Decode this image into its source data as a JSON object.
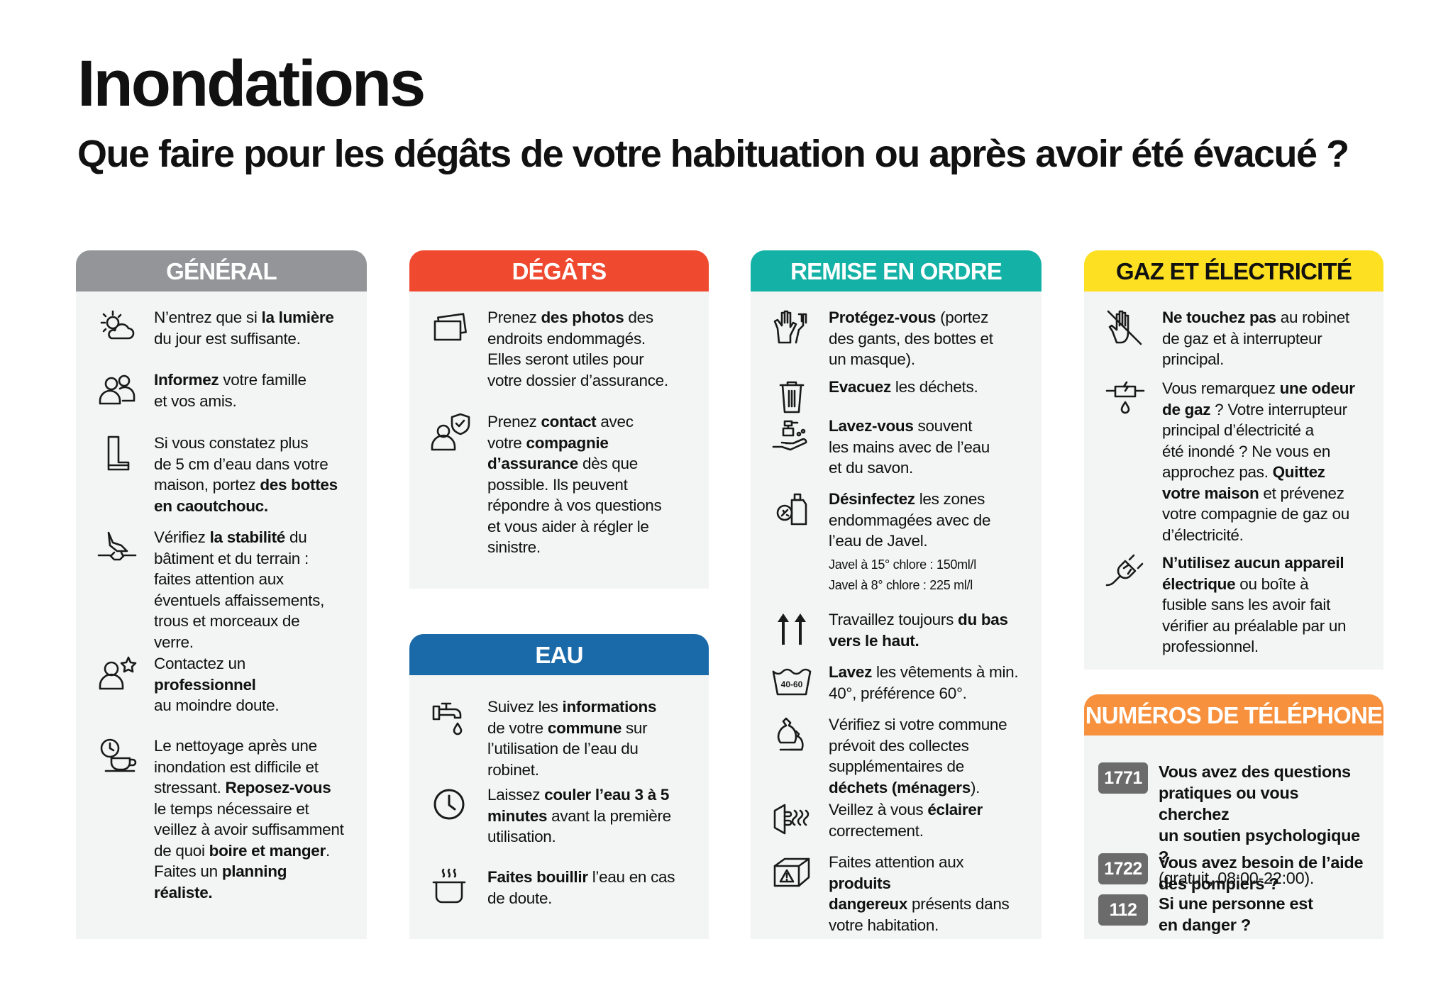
{
  "title": "Inondations",
  "subtitle": "Que faire pour les dégâts de votre habituation ou après avoir été évacué ?",
  "sections": {
    "general": {
      "title": "GÉNÉRAL",
      "color": "#939598",
      "items": [
        {
          "icon": "weather-sun-cloud-icon",
          "parts": [
            [
              "N’entrez que si "
            ],
            [
              "la lumière",
              1
            ],
            [
              "\ndu jour est suffisante."
            ]
          ]
        },
        {
          "icon": "people-icon",
          "parts": [
            [
              "Informez",
              1
            ],
            [
              " votre famille\net vos amis."
            ]
          ]
        },
        {
          "icon": "boot-icon",
          "parts": [
            [
              "Si vous constatez plus\nde 5 cm d’eau dans votre\nmaison, portez "
            ],
            [
              "des bottes\nen caoutchouc.",
              1
            ]
          ]
        },
        {
          "icon": "collapsing-ground-icon",
          "parts": [
            [
              "Vérifiez "
            ],
            [
              "la stabilité",
              1
            ],
            [
              " du\nbâtiment et du terrain :\nfaites attention aux\néventuels affaissements,\ntrous et morceaux de\nverre."
            ]
          ]
        },
        {
          "icon": "professional-icon",
          "parts": [
            [
              "Contactez un\n"
            ],
            [
              "professionnel",
              1
            ],
            [
              "\nau moindre doute."
            ]
          ]
        },
        {
          "icon": "coffee-break-icon",
          "parts": [
            [
              "Le nettoyage après une\ninondation est difficile et\nstressant. "
            ],
            [
              "Reposez-vous",
              1
            ],
            [
              "\nle temps nécessaire et\nveillez à avoir suffisamment\nde quoi "
            ],
            [
              "boire et manger",
              1
            ],
            [
              ".\nFaites un "
            ],
            [
              "planning\nréaliste.",
              1
            ]
          ]
        }
      ]
    },
    "degats": {
      "title": "DÉGÂTS",
      "color": "#ef4930",
      "items": [
        {
          "icon": "photos-icon",
          "parts": [
            [
              "Prenez "
            ],
            [
              "des photos",
              1
            ],
            [
              " des\nendroits endommagés.\nElles seront utiles pour\nvotre dossier d’assurance."
            ]
          ]
        },
        {
          "icon": "insurance-contact-icon",
          "parts": [
            [
              "Prenez "
            ],
            [
              "contact",
              1
            ],
            [
              " avec\nvotre "
            ],
            [
              "compagnie\nd’assurance",
              1
            ],
            [
              " dès que\npossible. Ils peuvent\nrépondre à vos questions\net vous aider à régler le\nsinistre."
            ]
          ]
        }
      ]
    },
    "eau": {
      "title": "EAU",
      "color": "#1a6aaa",
      "items": [
        {
          "icon": "tap-icon",
          "parts": [
            [
              "Suivez les "
            ],
            [
              "informations",
              1
            ],
            [
              "\nde votre "
            ],
            [
              "commune",
              1
            ],
            [
              " sur\nl’utilisation de l’eau du\nrobinet."
            ]
          ]
        },
        {
          "icon": "clock-icon",
          "parts": [
            [
              "Laissez "
            ],
            [
              "couler l’eau 3 à 5\nminutes",
              1
            ],
            [
              " avant la première\nutilisation."
            ]
          ]
        },
        {
          "icon": "boiling-pot-icon",
          "parts": [
            [
              "Faites bouillir",
              1
            ],
            [
              " l’eau en cas\nde doute."
            ]
          ]
        }
      ]
    },
    "remise": {
      "title": "REMISE EN ORDRE",
      "color": "#14b2a6",
      "items": [
        {
          "icon": "gloves-icon",
          "parts": [
            [
              "Protégez-vous",
              1
            ],
            [
              " (portez\ndes gants, des bottes et\nun masque)."
            ]
          ]
        },
        {
          "icon": "trash-bin-icon",
          "parts": [
            [
              "Evacuez",
              1
            ],
            [
              " les déchets."
            ]
          ]
        },
        {
          "icon": "hand-wash-icon",
          "parts": [
            [
              "Lavez-vous",
              1
            ],
            [
              " souvent\nles mains avec de l’eau\net du savon."
            ]
          ]
        },
        {
          "icon": "disinfectant-icon",
          "parts": [
            [
              "Désinfectez",
              1
            ],
            [
              " les zones\nendommagées avec de\nl’eau de Javel."
            ]
          ],
          "notes": [
            "Javel à 15° chlore : 150ml/l",
            "Javel à 8° chlore : 225 ml/l"
          ]
        },
        {
          "icon": "arrows-up-icon",
          "parts": [
            [
              "Travaillez toujours "
            ],
            [
              "du bas\nvers le haut.",
              1
            ]
          ]
        },
        {
          "icon": "laundry-icon",
          "iconText": "40-60",
          "parts": [
            [
              "Lavez",
              1
            ],
            [
              " les vêtements à min.\n40°, préférence 60°."
            ]
          ]
        },
        {
          "icon": "waste-bags-icon",
          "parts": [
            [
              "Vérifiez si votre commune\nprévoit des collectes\nsupplémentaires de\n"
            ],
            [
              "déchets (ménagers",
              1
            ],
            [
              ")."
            ]
          ]
        },
        {
          "icon": "lighting-icon",
          "parts": [
            [
              "Veillez à vous "
            ],
            [
              "éclairer",
              1
            ],
            [
              "\ncorrectement."
            ]
          ]
        },
        {
          "icon": "hazard-box-icon",
          "parts": [
            [
              "Faites attention aux "
            ],
            [
              "produits\ndangereux",
              1
            ],
            [
              " présents dans\nvotre habitation."
            ]
          ]
        }
      ]
    },
    "gaz": {
      "title": "GAZ ET ÉLECTRICITÉ",
      "color": "#fde022",
      "items": [
        {
          "icon": "no-touch-hand-icon",
          "parts": [
            [
              "Ne touchez pas",
              1
            ],
            [
              " au robinet\nde gaz et à interrupteur\nprincipal."
            ]
          ]
        },
        {
          "icon": "electric-water-icon",
          "parts": [
            [
              "Vous remarquez "
            ],
            [
              "une odeur\nde gaz",
              1
            ],
            [
              " ? Votre interrupteur\nprincipal d’électricité a\nété inondé ? Ne vous en\napprochez pas. "
            ],
            [
              "Quittez\nvotre maison",
              1
            ],
            [
              " et prévenez\nvotre compagnie de gaz ou\nd’électricité."
            ]
          ]
        },
        {
          "icon": "plug-icon",
          "parts": [
            [
              "N’utilisez aucun appareil\nélectrique",
              1
            ],
            [
              " ou boîte à\nfusible sans les avoir fait\nvérifier au préalable par un\nprofessionnel."
            ]
          ]
        }
      ]
    },
    "phone": {
      "title": "NUMÉROS DE TÉLÉPHONE",
      "color": "#f7913d",
      "items": [
        {
          "number": "1771",
          "parts": [
            [
              "Vous avez des questions\npratiques ou vous cherchez\nun soutien psychologique ?",
              1
            ],
            [
              "\n(gratuit, 08:00-22:00)."
            ]
          ]
        },
        {
          "number": "1722",
          "parts": [
            [
              "Vous avez besoin de l’aide\ndes pompiers ?",
              1
            ]
          ]
        },
        {
          "number": "112",
          "parts": [
            [
              "Si une personne est\nen danger ?",
              1
            ]
          ]
        }
      ]
    }
  }
}
